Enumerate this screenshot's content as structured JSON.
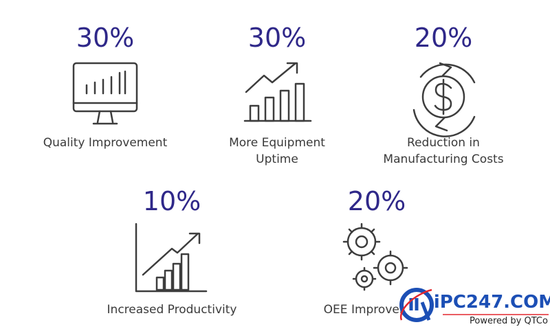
{
  "items": [
    {
      "stat": "30%",
      "label": [
        "Quality Improvement"
      ]
    },
    {
      "stat": "30%",
      "label": [
        "More Equipment",
        "Uptime"
      ]
    },
    {
      "stat": "20%",
      "label": [
        "Reduction in",
        "Manufacturing Costs"
      ]
    },
    {
      "stat": "10%",
      "label": [
        "Increased Productivity"
      ]
    },
    {
      "stat": "20%",
      "label": [
        "OEE Improvement"
      ]
    }
  ],
  "logo": {
    "brand": "iPC247.COM",
    "tagline": "Powered by QTCo"
  }
}
